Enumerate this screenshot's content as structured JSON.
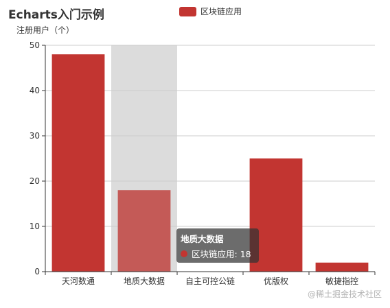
{
  "watermark": "@稀土掘金技术社区",
  "chart_data": {
    "type": "bar",
    "title": "Echarts入门示例",
    "ylabel": "注册用户（个）",
    "xlabel": "",
    "categories": [
      "天河数通",
      "地质大数据",
      "自主可控公链",
      "优版权",
      "敏捷指控"
    ],
    "series": [
      {
        "name": "区块链应用",
        "values": [
          48,
          18,
          0,
          25,
          2
        ],
        "color": "#c23531"
      }
    ],
    "ylim": [
      0,
      50
    ],
    "yticks": [
      0,
      10,
      20,
      30,
      40,
      50
    ],
    "grid": true,
    "legend_position": "top-center",
    "highlight_index": 1,
    "highlight_band_color": "#dcdcdc",
    "highlight_bar_color": "#c45a57",
    "tooltip": {
      "title": "地质大数据",
      "series": "区块链应用",
      "value": "18"
    }
  }
}
